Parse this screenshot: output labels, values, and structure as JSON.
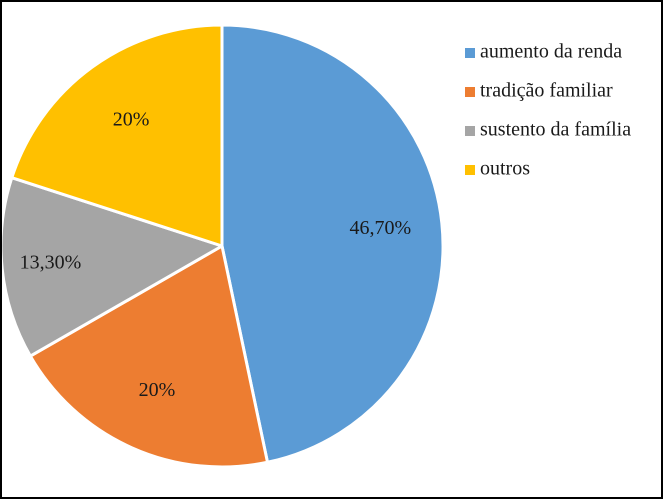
{
  "chart_data": {
    "type": "pie",
    "categories": [
      "aumento da renda",
      "tradição familiar",
      "sustento da família",
      "outros"
    ],
    "values": [
      46.7,
      20,
      13.3,
      20
    ],
    "value_labels": [
      "46,70%",
      "20%",
      "13,30%",
      "20%"
    ],
    "colors": [
      "#5B9BD5",
      "#ED7D31",
      "#A5A5A5",
      "#FFC000"
    ],
    "start_angle_deg": 0,
    "direction": "clockwise",
    "legend_position": "right"
  }
}
